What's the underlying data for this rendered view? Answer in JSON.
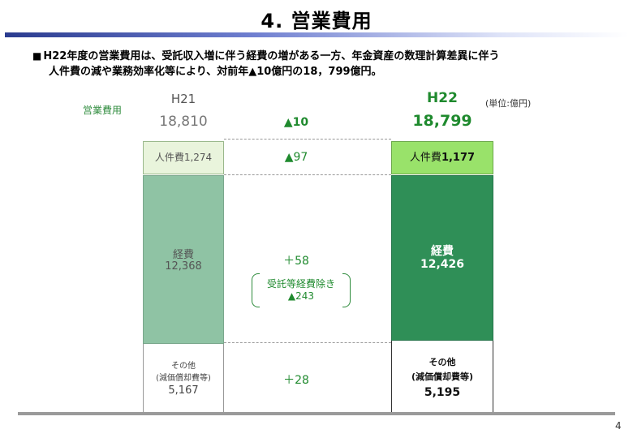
{
  "title": "4. 営業費用",
  "summary": {
    "bullet": "■",
    "line1": "H22年度の営業費用は、受託収入増に伴う経費の増がある一方、年金資産の数理計算差異に伴う",
    "line2": "人件費の減や業務効率化等により、対前年▲10億円の18，799億円。"
  },
  "axis_label": "営業費用",
  "unit": "(単位:億円)",
  "h21": {
    "year": "H21",
    "total": "18,810",
    "personnel": "人件費1,274",
    "expenses_label": "経費",
    "expenses_value": "12,368",
    "other_label1": "その他",
    "other_label2": "(減価償却費等)",
    "other_value": "5,167"
  },
  "h22": {
    "year": "H22",
    "total": "18,799",
    "personnel_label": "人件費",
    "personnel_value": "1,177",
    "expenses_label": "経費",
    "expenses_value": "12,426",
    "other_label1": "その他",
    "other_label2": "(減価償却費等)",
    "other_value": "5,195"
  },
  "deltas": {
    "total": "▲10",
    "personnel": "▲97",
    "expenses": "＋58",
    "expenses_excl_label": "受託等経費除き",
    "expenses_excl_value": "▲243",
    "other": "＋28"
  },
  "page_number": "4",
  "colors": {
    "title_rule": "#2a3b8f",
    "green_text": "#1f8a2e",
    "h21_personnel": "#e9f4dc",
    "h21_expenses": "#8fc3a4",
    "h22_personnel": "#99e26a",
    "h22_expenses": "#2f8f57"
  }
}
